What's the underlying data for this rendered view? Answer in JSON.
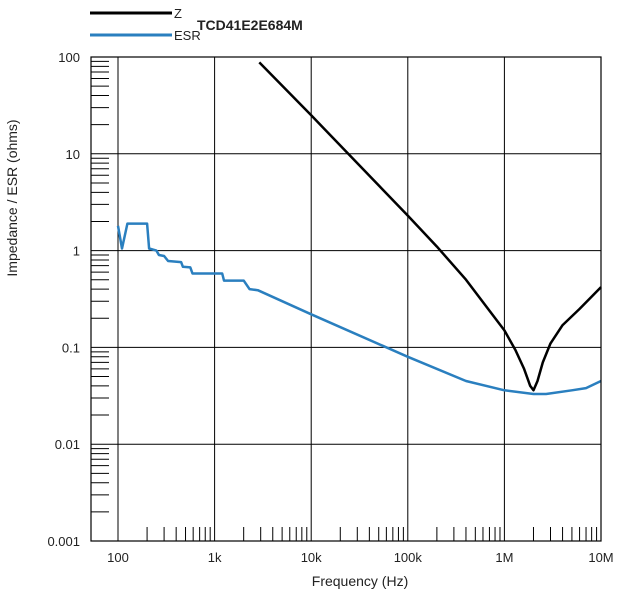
{
  "chart_data": {
    "type": "line",
    "title": "TCD41E2E684M",
    "xlabel": "Frequency (Hz)",
    "ylabel": "Impedance / ESR (ohms)",
    "x_scale": "log",
    "y_scale": "log",
    "xlim": [
      100,
      10000000
    ],
    "ylim": [
      0.001,
      100
    ],
    "x_ticks": [
      {
        "value": 100,
        "label": "100"
      },
      {
        "value": 1000,
        "label": "1k"
      },
      {
        "value": 10000,
        "label": "10k"
      },
      {
        "value": 100000,
        "label": "100k"
      },
      {
        "value": 1000000,
        "label": "1M"
      },
      {
        "value": 10000000,
        "label": "10M"
      }
    ],
    "y_ticks": [
      {
        "value": 100,
        "label": "100"
      },
      {
        "value": 10,
        "label": "10"
      },
      {
        "value": 1,
        "label": "1"
      },
      {
        "value": 0.1,
        "label": "0.1"
      },
      {
        "value": 0.01,
        "label": "0.01"
      },
      {
        "value": 0.001,
        "label": "0.001"
      }
    ],
    "grid": true,
    "legend_position": "top-left",
    "series": [
      {
        "name": "Z",
        "color": "#000000",
        "points": [
          [
            2900,
            88
          ],
          [
            10000,
            25
          ],
          [
            100000,
            2.3
          ],
          [
            200000,
            1.1
          ],
          [
            400000,
            0.5
          ],
          [
            700000,
            0.24
          ],
          [
            1000000,
            0.15
          ],
          [
            1300000,
            0.094
          ],
          [
            1600000,
            0.06
          ],
          [
            1850000,
            0.04
          ],
          [
            2000000,
            0.036
          ],
          [
            2200000,
            0.045
          ],
          [
            2500000,
            0.07
          ],
          [
            3000000,
            0.11
          ],
          [
            4000000,
            0.17
          ],
          [
            6000000,
            0.25
          ],
          [
            10000000,
            0.42
          ]
        ]
      },
      {
        "name": "ESR",
        "color": "#2a7fbf",
        "points": [
          [
            100,
            1.8
          ],
          [
            110,
            1.05
          ],
          [
            125,
            1.9
          ],
          [
            200,
            1.9
          ],
          [
            210,
            1.05
          ],
          [
            250,
            1.0
          ],
          [
            265,
            0.9
          ],
          [
            300,
            0.88
          ],
          [
            330,
            0.78
          ],
          [
            450,
            0.76
          ],
          [
            470,
            0.68
          ],
          [
            560,
            0.67
          ],
          [
            590,
            0.58
          ],
          [
            1200,
            0.58
          ],
          [
            1250,
            0.49
          ],
          [
            2000,
            0.49
          ],
          [
            2300,
            0.4
          ],
          [
            2800,
            0.39
          ],
          [
            10000,
            0.22
          ],
          [
            100000,
            0.08
          ],
          [
            400000,
            0.045
          ],
          [
            1000000,
            0.036
          ],
          [
            2000000,
            0.033
          ],
          [
            2700000,
            0.033
          ],
          [
            5000000,
            0.036
          ],
          [
            7000000,
            0.038
          ],
          [
            10000000,
            0.045
          ]
        ]
      }
    ]
  }
}
